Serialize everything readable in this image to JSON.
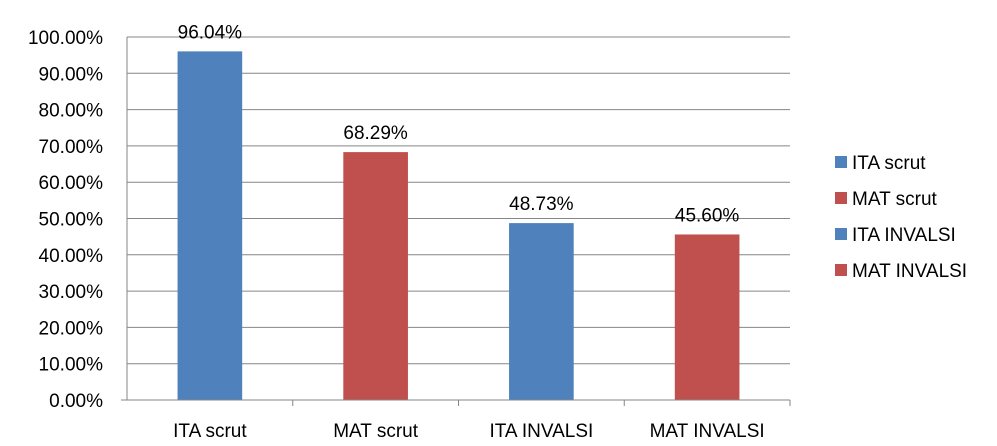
{
  "chart_data": {
    "type": "bar",
    "categories": [
      "ITA scrut",
      "MAT scrut",
      "ITA INVALSI",
      "MAT INVALSI"
    ],
    "series": [
      {
        "name": "ITA scrut",
        "values": [
          96.04,
          68.29,
          48.73,
          45.6
        ],
        "colors": [
          "#4F81BD",
          "#C0504D",
          "#4F81BD",
          "#C0504D"
        ]
      }
    ],
    "data_labels": [
      "96.04%",
      "68.29%",
      "48.73%",
      "45.60%"
    ],
    "y_ticks": [
      "0.00%",
      "10.00%",
      "20.00%",
      "30.00%",
      "40.00%",
      "50.00%",
      "60.00%",
      "70.00%",
      "80.00%",
      "90.00%",
      "100.00%"
    ],
    "ylim": [
      0,
      100
    ],
    "y_unit": "%",
    "grid": true,
    "legend": {
      "position": "right",
      "entries": [
        {
          "label": "ITA scrut",
          "color": "#4F81BD"
        },
        {
          "label": "MAT scrut",
          "color": "#C0504D"
        },
        {
          "label": "ITA INVALSI",
          "color": "#4F81BD"
        },
        {
          "label": "MAT INVALSI",
          "color": "#C0504D"
        }
      ]
    },
    "title": "",
    "xlabel": "",
    "ylabel": ""
  }
}
